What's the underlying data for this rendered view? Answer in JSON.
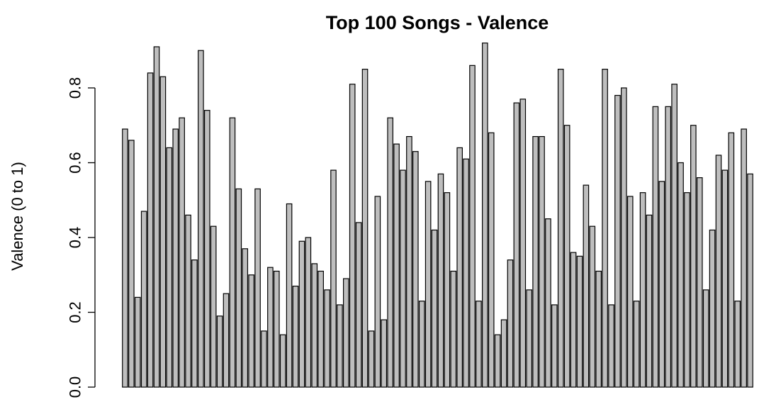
{
  "chart_data": {
    "type": "bar",
    "title": "Top 100 Songs - Valence",
    "xlabel": "",
    "ylabel": "Valence (0 to 1)",
    "ylim": [
      0,
      0.92
    ],
    "yticks": [
      0.0,
      0.2,
      0.4,
      0.6,
      0.8
    ],
    "ytick_labels": [
      "0.0",
      "0.2",
      "0.4",
      "0.6",
      "0.8"
    ],
    "grid": false,
    "legend": "none",
    "bar_fill": "#bebebe",
    "bar_stroke": "#000000",
    "values": [
      0.69,
      0.66,
      0.24,
      0.47,
      0.84,
      0.91,
      0.83,
      0.64,
      0.69,
      0.72,
      0.46,
      0.34,
      0.9,
      0.74,
      0.43,
      0.19,
      0.25,
      0.72,
      0.53,
      0.37,
      0.3,
      0.53,
      0.15,
      0.32,
      0.31,
      0.14,
      0.49,
      0.27,
      0.39,
      0.4,
      0.33,
      0.31,
      0.26,
      0.58,
      0.22,
      0.29,
      0.81,
      0.44,
      0.85,
      0.15,
      0.51,
      0.18,
      0.72,
      0.65,
      0.58,
      0.67,
      0.63,
      0.23,
      0.55,
      0.42,
      0.57,
      0.52,
      0.31,
      0.64,
      0.61,
      0.86,
      0.23,
      0.92,
      0.68,
      0.14,
      0.18,
      0.34,
      0.76,
      0.77,
      0.26,
      0.67,
      0.67,
      0.45,
      0.22,
      0.85,
      0.7,
      0.36,
      0.35,
      0.54,
      0.43,
      0.31,
      0.85,
      0.22,
      0.78,
      0.8,
      0.51,
      0.23,
      0.52,
      0.46,
      0.75,
      0.55,
      0.75,
      0.81,
      0.6,
      0.52,
      0.7,
      0.56,
      0.26,
      0.42,
      0.62,
      0.58,
      0.68,
      0.23,
      0.69,
      0.57
    ]
  }
}
